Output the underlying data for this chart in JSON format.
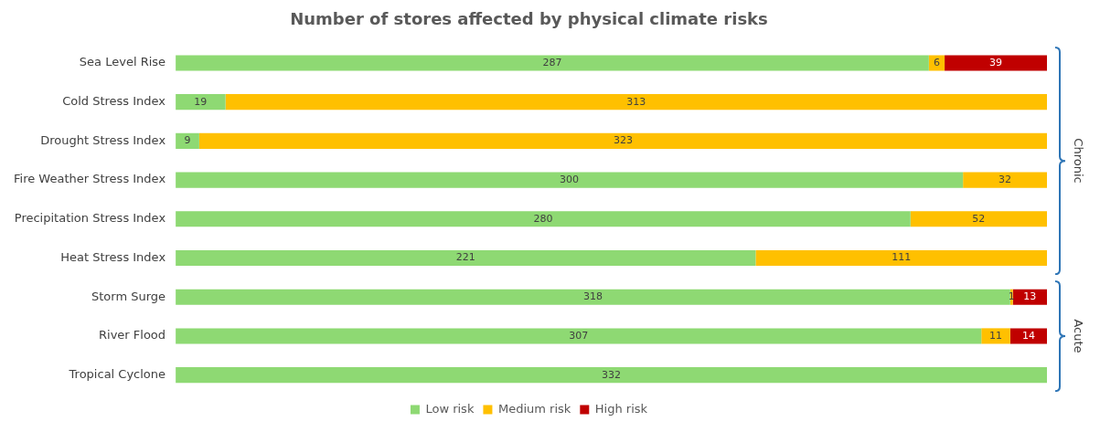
{
  "chart_data": {
    "type": "bar",
    "orientation": "horizontal",
    "stacked": true,
    "title": "Number of stores affected by physical climate risks",
    "categories": [
      "Sea Level Rise",
      "Cold Stress Index",
      "Drought Stress Index",
      "Fire Weather Stress Index",
      "Precipitation Stress Index",
      "Heat Stress Index",
      "Storm Surge",
      "River Flood",
      "Tropical Cyclone"
    ],
    "series": [
      {
        "name": "Low risk",
        "color": "#8ed973",
        "values": [
          287,
          19,
          9,
          300,
          280,
          221,
          318,
          307,
          332
        ]
      },
      {
        "name": "Medium risk",
        "color": "#ffc000",
        "values": [
          6,
          313,
          323,
          32,
          52,
          111,
          1,
          11,
          null
        ]
      },
      {
        "name": "High risk",
        "color": "#c00000",
        "values": [
          39,
          null,
          null,
          null,
          null,
          null,
          13,
          14,
          null
        ]
      }
    ],
    "xlim": [
      0,
      332
    ],
    "tick_labels": "y",
    "grid": false,
    "legend": "bottom",
    "data_labels": true,
    "annotations": [
      "Chronic",
      "Acute"
    ]
  }
}
